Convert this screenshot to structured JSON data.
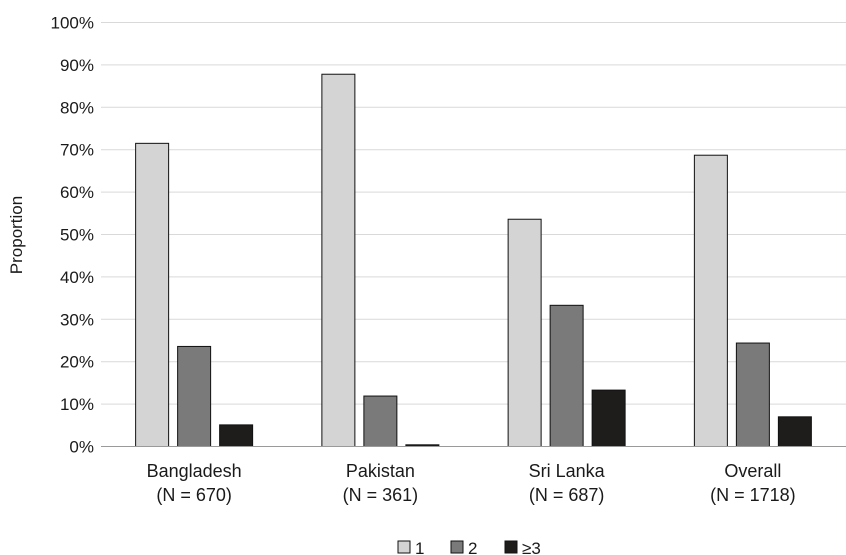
{
  "chart_data": {
    "type": "bar",
    "ylabel": "Proportion",
    "xlabel": "",
    "ylim": [
      0,
      100
    ],
    "y_ticks": [
      "0%",
      "10%",
      "20%",
      "30%",
      "40%",
      "50%",
      "60%",
      "70%",
      "80%",
      "90%",
      "100%"
    ],
    "grid": "horizontal",
    "legend_position": "bottom-center",
    "categories": [
      {
        "name": "Bangladesh",
        "n": "(N = 670)"
      },
      {
        "name": "Pakistan",
        "n": "(N = 361)"
      },
      {
        "name": "Sri Lanka",
        "n": "(N = 687)"
      },
      {
        "name": "Overall",
        "n": "(N = 1718)"
      }
    ],
    "series": [
      {
        "name": "1",
        "color": "#d4d4d4",
        "values": [
          71.5,
          87.8,
          53.6,
          68.7
        ]
      },
      {
        "name": "2",
        "color": "#7a7a7a",
        "values": [
          23.6,
          11.9,
          33.3,
          24.4
        ]
      },
      {
        "name": "≥3",
        "color": "#1f1c1c",
        "values": [
          5.1,
          0.4,
          13.3,
          7.0
        ]
      }
    ]
  }
}
